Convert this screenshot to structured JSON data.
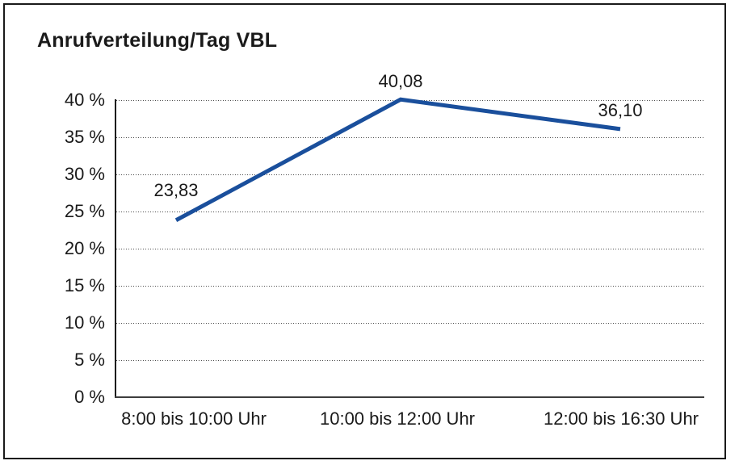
{
  "frame": {
    "border_color": "#1a1a1a",
    "background": "#ffffff"
  },
  "chart_data": {
    "type": "line",
    "title": "Anrufverteilung/Tag VBL",
    "categories": [
      "8:00 bis 10:00 Uhr",
      "10:00 bis 12:00 Uhr",
      "12:00 bis 16:30 Uhr"
    ],
    "series": [
      {
        "name": "Anrufverteilung/Tag VBL",
        "values": [
          23.83,
          40.08,
          36.1
        ],
        "data_labels": [
          "23,83",
          "40,08",
          "36,10"
        ],
        "color": "#1a4f9c"
      }
    ],
    "xlabel": "",
    "ylabel": "",
    "ylim": [
      0,
      40
    ],
    "ytick_step": 5,
    "yticks": [
      "0 %",
      "5 %",
      "10 %",
      "15 %",
      "20 %",
      "25 %",
      "30 %",
      "35 %",
      "40 %"
    ],
    "grid": "horizontal-dotted",
    "legend": "none"
  }
}
